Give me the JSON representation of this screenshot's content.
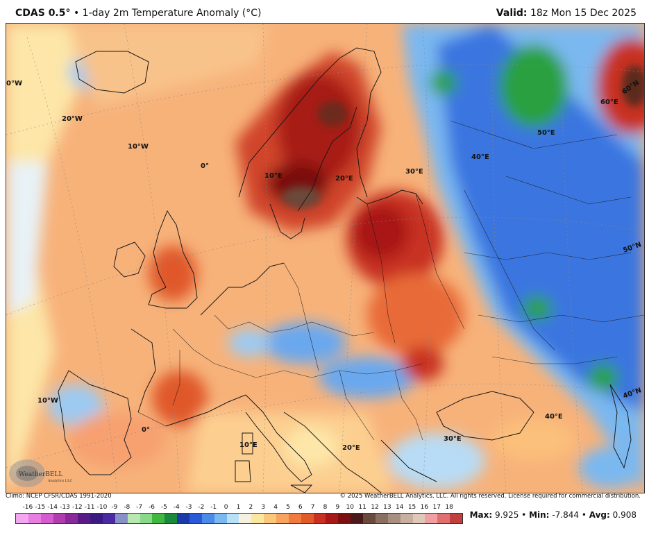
{
  "header": {
    "model": "CDAS 0.5°",
    "separator": "•",
    "description": "1-day 2m Temperature Anomaly (°C)",
    "valid_label": "Valid:",
    "valid_time": "18z Mon 15 Dec 2025"
  },
  "map_labels": {
    "lon_0w_left": "0°W",
    "lon_20w": "20°W",
    "lon_10w_top": "10°W",
    "lon_0_top": "0°",
    "lon_10e_top": "10°E",
    "lon_20e_top": "20°E",
    "lon_30e_top": "30°E",
    "lon_40e_top": "40°E",
    "lon_50e": "50°E",
    "lon_60e": "60°E",
    "lat_60n": "60°N",
    "lat_50n": "50°N",
    "lat_40n": "40°N",
    "lon_10w_bottom": "10°W",
    "lon_0_bottom": "0°",
    "lon_10e_bottom": "10°E",
    "lon_20e_bottom": "20°E",
    "lon_30e_bottom": "30°E",
    "lon_40e_bottom": "40°E"
  },
  "logo": {
    "text": "WeatherBELL",
    "subtext": "Analytics LLC"
  },
  "footer": {
    "climo": "Climo: NCEP CFSR/CDAS 1991-2020",
    "copyright": "© 2025 WeatherBELL Analytics, LLC. All rights reserved. License required for commercial distribution."
  },
  "colorbar": {
    "labels": [
      "-16",
      "-15",
      "-14",
      "-13",
      "-12",
      "-11",
      "-10",
      "-9",
      "-8",
      "-7",
      "-6",
      "-5",
      "-4",
      "-3",
      "-2",
      "-1",
      "0",
      "1",
      "2",
      "3",
      "4",
      "5",
      "6",
      "7",
      "8",
      "9",
      "10",
      "11",
      "12",
      "13",
      "14",
      "15",
      "16",
      "17",
      "18"
    ],
    "colors": [
      "#f5a6f0",
      "#e87fe0",
      "#d45ccf",
      "#b03cb0",
      "#8a2a9a",
      "#5a1a85",
      "#3a1a80",
      "#4a2aa0",
      "#8890c8",
      "#b8e8b0",
      "#8ad88a",
      "#40b840",
      "#1a8a3a",
      "#1a3aa8",
      "#2a5ad8",
      "#4a8ae8",
      "#7ab8f0",
      "#b8e0f8",
      "#f5f0e0",
      "#fce7a0",
      "#fbc87a",
      "#f7a460",
      "#f07a40",
      "#e05a2a",
      "#c83020",
      "#a81818",
      "#7a1010",
      "#4a1a1a",
      "#6a4a3a",
      "#8a7060",
      "#a89080",
      "#c8b0a0",
      "#e0c8b8",
      "#f0a0a0",
      "#e07070",
      "#c04040"
    ]
  },
  "stats": {
    "max_label": "Max:",
    "max": "9.925",
    "min_label": "Min:",
    "min": "-7.844",
    "avg_label": "Avg:",
    "avg": "0.908",
    "sep": "•"
  }
}
